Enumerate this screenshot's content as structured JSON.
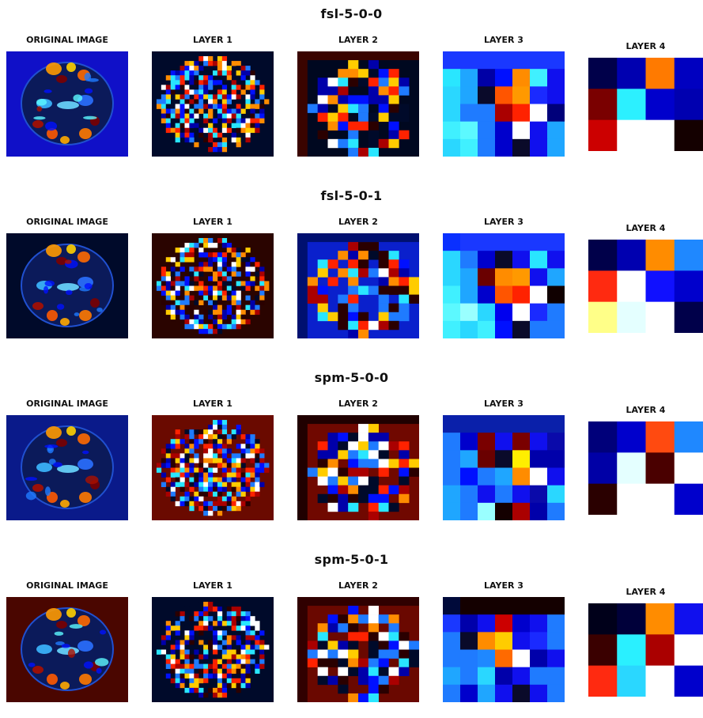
{
  "rows": [
    {
      "title": "fsl-5-0-0",
      "panels": [
        {
          "label": "ORIGINAL IMAGE",
          "type": "original",
          "bg": "#1010c8",
          "mid": "#0a1a8a"
        },
        {
          "label": "LAYER 1",
          "type": "noise",
          "bg": "#000a2a"
        },
        {
          "label": "LAYER 2",
          "type": "grid",
          "bg": "#000820",
          "edge": "#3a0400"
        },
        {
          "label": "LAYER 3",
          "type": "grid3",
          "grid": [
            [
              "#1a38ff",
              "#1a38ff",
              "#1a38ff",
              "#1a38ff",
              "#1a38ff",
              "#1a38ff",
              "#1a38ff"
            ],
            [
              "#29e6ff",
              "#1fa6ff",
              "#0000a6",
              "#0010ff",
              "#ff8c00",
              "#40f0ff",
              "#1010ee"
            ],
            [
              "#2ad7ff",
              "#1fa6ff",
              "#0a0a2a",
              "#ff5500",
              "#ff9900",
              "#1a2aff",
              "#1010ee"
            ],
            [
              "#2ad7ff",
              "#1f7bff",
              "#1f7bff",
              "#aa0000",
              "#ff2200",
              "#ffffff",
              "#00007a"
            ],
            [
              "#40f0ff",
              "#5cf9ff",
              "#1f7bff",
              "#0000cc",
              "#ffffff",
              "#1010ee",
              "#1fa6ff"
            ],
            [
              "#2ad7ff",
              "#40f0ff",
              "#1f7bff",
              "#0000cc",
              "#0a0a2a",
              "#1010ee",
              "#1fa6ff"
            ]
          ]
        },
        {
          "label": "LAYER 4",
          "type": "grid4",
          "grid": [
            [
              "#00004a",
              "#0000b0",
              "#ff7a00",
              "#0000c0"
            ],
            [
              "#7a0000",
              "#2cf0ff",
              "#0000cc",
              "#0000b0"
            ],
            [
              "#cc0000",
              "#ffffff",
              "#ffffff",
              "#140000"
            ]
          ]
        }
      ]
    },
    {
      "title": "fsl-5-0-1",
      "panels": [
        {
          "label": "ORIGINAL IMAGE",
          "type": "original",
          "bg": "#000a2a",
          "mid": "#000a2a"
        },
        {
          "label": "LAYER 1",
          "type": "noise",
          "bg": "#2a0400"
        },
        {
          "label": "LAYER 2",
          "type": "grid",
          "bg": "#0a20cc",
          "edge": "#001070"
        },
        {
          "label": "LAYER 3",
          "type": "grid3",
          "grid": [
            [
              "#0a30ff",
              "#1a38ff",
              "#1a38ff",
              "#1a38ff",
              "#1a38ff",
              "#1a38ff",
              "#1a38ff"
            ],
            [
              "#2ad7ff",
              "#1f7bff",
              "#0000cc",
              "#0a0a2a",
              "#1010ee",
              "#29e6ff",
              "#1010ee"
            ],
            [
              "#2ad7ff",
              "#1fa6ff",
              "#6a0000",
              "#ff8c00",
              "#ff9900",
              "#1010ee",
              "#1fa6ff"
            ],
            [
              "#40f0ff",
              "#1fa6ff",
              "#0000cc",
              "#ff5500",
              "#ff2200",
              "#ffffff",
              "#100000"
            ],
            [
              "#5cf9ff",
              "#9affff",
              "#2ad7ff",
              "#0000ee",
              "#ffffff",
              "#1a2aff",
              "#1f7bff"
            ],
            [
              "#40f0ff",
              "#2ad7ff",
              "#40f0ff",
              "#0010ff",
              "#0a0a2a",
              "#1f7bff",
              "#1f7bff"
            ]
          ]
        },
        {
          "label": "LAYER 4",
          "type": "grid4",
          "grid": [
            [
              "#00004a",
              "#0000b0",
              "#ff8c00",
              "#1f88ff"
            ],
            [
              "#ff2a10",
              "#ffffff",
              "#1010ff",
              "#0000cc"
            ],
            [
              "#ffff88",
              "#e4ffff",
              "#ffffff",
              "#00004a"
            ]
          ]
        }
      ]
    },
    {
      "title": "spm-5-0-0",
      "panels": [
        {
          "label": "ORIGINAL IMAGE",
          "type": "original",
          "bg": "#0a1a8a",
          "mid": "#0a1a8a"
        },
        {
          "label": "LAYER 1",
          "type": "noise",
          "bg": "#6a0a00"
        },
        {
          "label": "LAYER 2",
          "type": "grid",
          "bg": "#700800",
          "edge": "#200000"
        },
        {
          "label": "LAYER 3",
          "type": "grid3",
          "grid": [
            [
              "#0a20aa",
              "#0a20aa",
              "#0a20aa",
              "#0a20aa",
              "#0a20aa",
              "#0a20aa",
              "#0a20aa"
            ],
            [
              "#1f7bff",
              "#0000cc",
              "#7a0000",
              "#1010ee",
              "#7a0000",
              "#1010ee",
              "#0a0aaa"
            ],
            [
              "#1f7bff",
              "#1fa6ff",
              "#6a0000",
              "#0a0a2a",
              "#ffee00",
              "#0000aa",
              "#0000aa"
            ],
            [
              "#1f7bff",
              "#0010ff",
              "#1f7bff",
              "#1fa6ff",
              "#ff8c00",
              "#ffffff",
              "#1010ee"
            ],
            [
              "#1fa6ff",
              "#1f7bff",
              "#1010ee",
              "#1f7bff",
              "#1010ee",
              "#0a0aaa",
              "#2ad7ff"
            ],
            [
              "#1fa6ff",
              "#1f7bff",
              "#9affff",
              "#140000",
              "#aa0000",
              "#0000aa",
              "#1f7bff"
            ]
          ]
        },
        {
          "label": "LAYER 4",
          "type": "grid4",
          "grid": [
            [
              "#00007a",
              "#0000cc",
              "#ff4a10",
              "#1f88ff"
            ],
            [
              "#0000a6",
              "#e4ffff",
              "#4a0000",
              "#ffffff"
            ],
            [
              "#2a0000",
              "#ffffff",
              "#ffffff",
              "#0000cc"
            ]
          ]
        }
      ]
    },
    {
      "title": "spm-5-0-1",
      "panels": [
        {
          "label": "ORIGINAL IMAGE",
          "type": "original",
          "bg": "#4a0600",
          "mid": "#2a0400"
        },
        {
          "label": "LAYER 1",
          "type": "noise",
          "bg": "#000a2a"
        },
        {
          "label": "LAYER 2",
          "type": "grid",
          "bg": "#6a0800",
          "edge": "#300000"
        },
        {
          "label": "LAYER 3",
          "type": "grid3",
          "grid": [
            [
              "#000a3a",
              "#140000",
              "#140000",
              "#140000",
              "#140000",
              "#140000",
              "#140000"
            ],
            [
              "#1a38ff",
              "#0000aa",
              "#1010ee",
              "#cc0000",
              "#0000cc",
              "#1010ee",
              "#1f7bff"
            ],
            [
              "#1f7bff",
              "#0a0a2a",
              "#ff8c00",
              "#ffcc00",
              "#1010ee",
              "#1a2aff",
              "#1f7bff"
            ],
            [
              "#1f7bff",
              "#1f7bff",
              "#1f88ff",
              "#ff6a00",
              "#ffffff",
              "#0000aa",
              "#1010ee"
            ],
            [
              "#1fa6ff",
              "#1f7bff",
              "#2ad7ff",
              "#0000aa",
              "#1010ee",
              "#1f7bff",
              "#1f7bff"
            ],
            [
              "#1f7bff",
              "#0000cc",
              "#1fa6ff",
              "#1010ee",
              "#0a0a2a",
              "#1010ee",
              "#1f7bff"
            ]
          ]
        },
        {
          "label": "LAYER 4",
          "type": "grid4",
          "grid": [
            [
              "#00001a",
              "#00003a",
              "#ff8c00",
              "#1010ee"
            ],
            [
              "#3a0000",
              "#2af0ff",
              "#aa0000",
              "#ffffff"
            ],
            [
              "#ff2a10",
              "#2ad7ff",
              "#ffffff",
              "#0000cc"
            ]
          ]
        }
      ]
    }
  ]
}
